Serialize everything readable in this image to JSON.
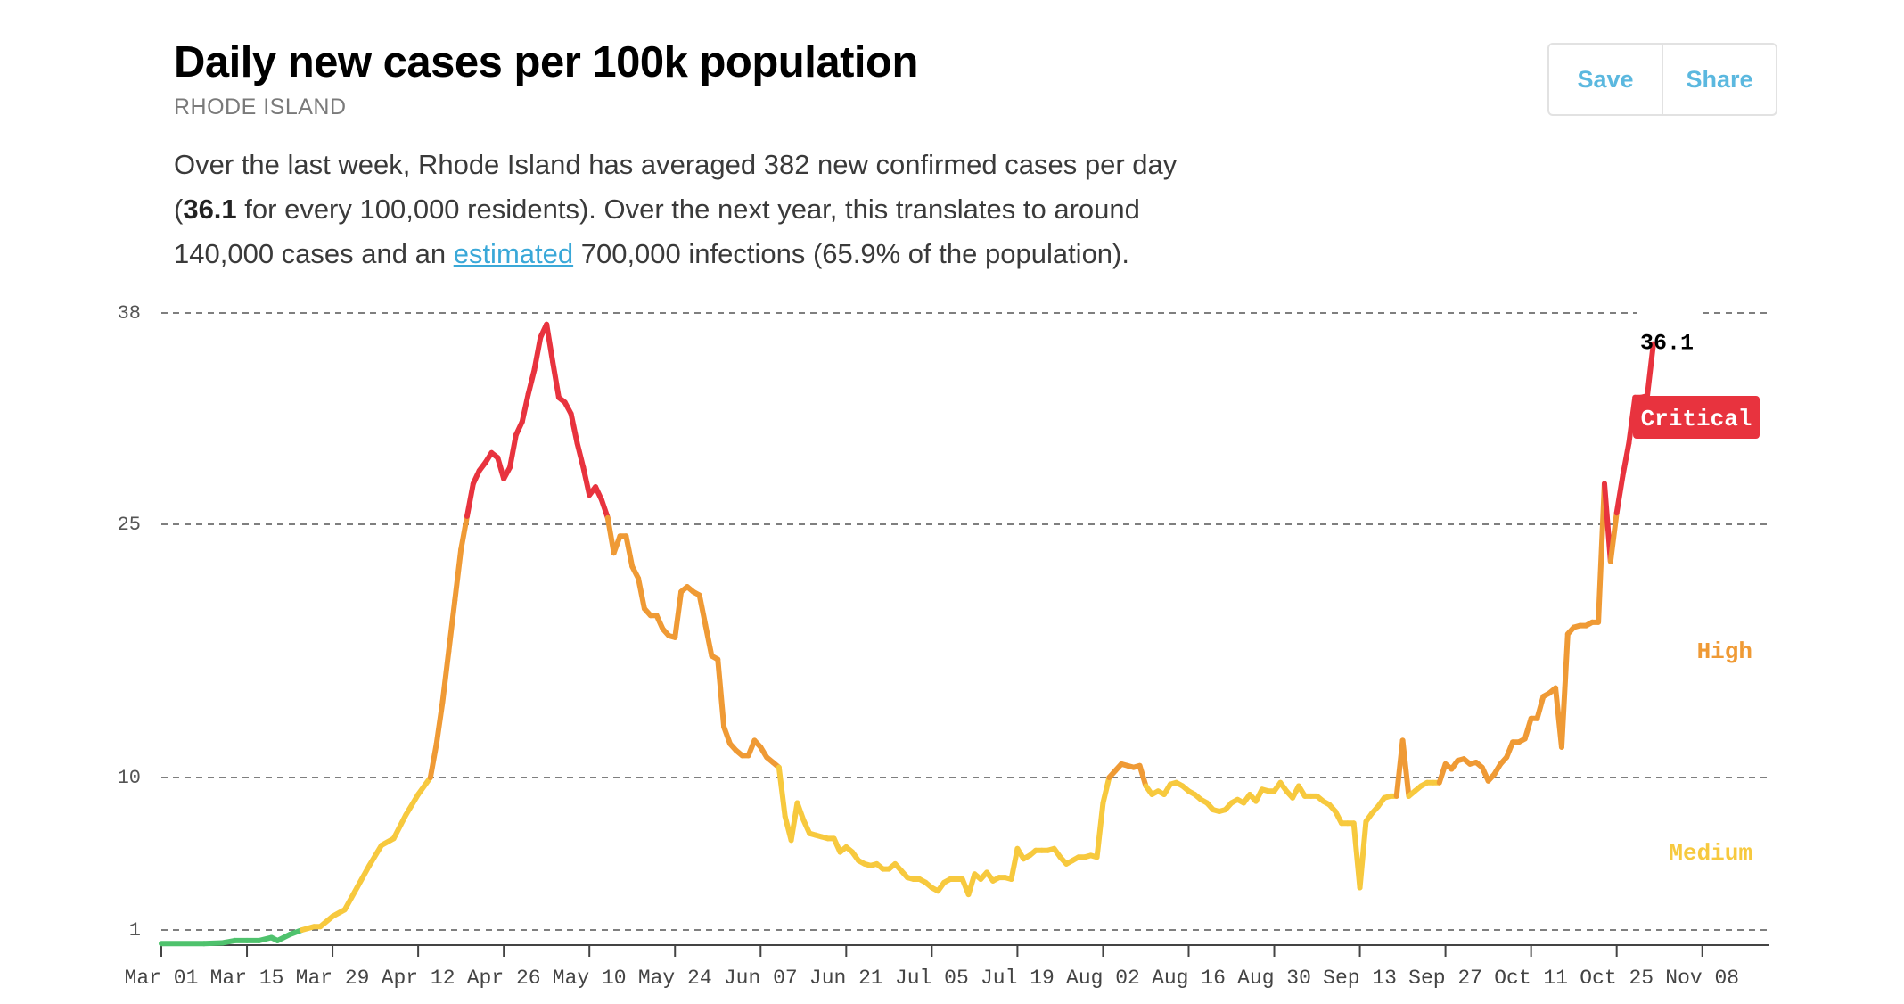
{
  "header": {
    "title": "Daily new cases per 100k population",
    "subtitle": "RHODE ISLAND",
    "save_label": "Save",
    "share_label": "Share"
  },
  "summary": {
    "part1": "Over the last week, Rhode Island has averaged 382 new confirmed cases per day (",
    "bold_value": "36.1",
    "part2": " for every 100,000 residents). Over the next year, this translates to around 140,000 cases and an ",
    "link_text": "estimated",
    "part3": " 700,000 infections (65.9% of the population)."
  },
  "chart_data": {
    "type": "line",
    "title": "Daily new cases per 100k population",
    "xlabel": "",
    "ylabel": "",
    "y_ticks": [
      1,
      10,
      25,
      38
    ],
    "y_tick_labels": [
      "1",
      "10",
      "25",
      "38"
    ],
    "ylim": [
      0,
      38
    ],
    "x_tick_labels": [
      "Mar 01",
      "Mar 15",
      "Mar 29",
      "Apr 12",
      "Apr 26",
      "May 10",
      "May 24",
      "Jun 07",
      "Jun 21",
      "Jul 05",
      "Jul 19",
      "Aug 02",
      "Aug 16",
      "Aug 30",
      "Sep 13",
      "Sep 27",
      "Oct 11",
      "Oct 25",
      "Nov 08"
    ],
    "grid": "horizontal dashed",
    "last_value_label": "36.1",
    "risk_levels": [
      {
        "name": "Critical",
        "color": "#e8333e"
      },
      {
        "name": "High",
        "color": "#ef9a35"
      },
      {
        "name": "Medium",
        "color": "#f7c93e"
      }
    ],
    "level_colors": {
      "low": "#4fc26d",
      "medium": "#f7c93e",
      "high": "#ef9a35",
      "critical": "#e8333e"
    },
    "series": [
      {
        "x_unit": "days since Mar 01",
        "points": [
          [
            0,
            0.1
          ],
          [
            7,
            0.1
          ],
          [
            10,
            0.15
          ],
          [
            12,
            0.3
          ],
          [
            14,
            0.3
          ],
          [
            16,
            0.3
          ],
          [
            18,
            0.5
          ],
          [
            19,
            0.3
          ],
          [
            21,
            0.7
          ],
          [
            23,
            1.0
          ],
          [
            25,
            1.2
          ],
          [
            26,
            1.2
          ],
          [
            28,
            1.8
          ],
          [
            30,
            2.2
          ],
          [
            32,
            3.5
          ],
          [
            34,
            4.8
          ],
          [
            36,
            6.0
          ],
          [
            38,
            6.4
          ],
          [
            40,
            7.8
          ],
          [
            42,
            9.0
          ],
          [
            44,
            10.0
          ],
          [
            45,
            12.0
          ],
          [
            46,
            14.5
          ],
          [
            47,
            17.5
          ],
          [
            48,
            20.5
          ],
          [
            49,
            23.5
          ],
          [
            50,
            25.5
          ],
          [
            51,
            27.5
          ],
          [
            52,
            28.3
          ],
          [
            53,
            28.8
          ],
          [
            54,
            29.4
          ],
          [
            55,
            29.1
          ],
          [
            56,
            27.8
          ],
          [
            57,
            28.5
          ],
          [
            58,
            30.5
          ],
          [
            59,
            31.3
          ],
          [
            60,
            33.0
          ],
          [
            61,
            34.5
          ],
          [
            62,
            36.5
          ],
          [
            63,
            37.3
          ],
          [
            64,
            35.0
          ],
          [
            65,
            32.8
          ],
          [
            66,
            32.5
          ],
          [
            67,
            31.8
          ],
          [
            68,
            30.0
          ],
          [
            69,
            28.5
          ],
          [
            70,
            26.8
          ],
          [
            71,
            27.3
          ],
          [
            72,
            26.5
          ],
          [
            73,
            25.4
          ],
          [
            74,
            23.3
          ],
          [
            75,
            24.3
          ],
          [
            76,
            24.3
          ],
          [
            77,
            22.5
          ],
          [
            78,
            21.8
          ],
          [
            79,
            20.0
          ],
          [
            80,
            19.6
          ],
          [
            81,
            19.6
          ],
          [
            82,
            18.8
          ],
          [
            83,
            18.4
          ],
          [
            84,
            18.3
          ],
          [
            85,
            21.0
          ],
          [
            86,
            21.3
          ],
          [
            87,
            21.0
          ],
          [
            88,
            20.8
          ],
          [
            89,
            19.0
          ],
          [
            90,
            17.2
          ],
          [
            91,
            17.0
          ],
          [
            92,
            13.0
          ],
          [
            93,
            12.0
          ],
          [
            94,
            11.6
          ],
          [
            95,
            11.3
          ],
          [
            96,
            11.3
          ],
          [
            97,
            12.2
          ],
          [
            98,
            11.8
          ],
          [
            99,
            11.2
          ],
          [
            100,
            10.9
          ],
          [
            101,
            10.6
          ],
          [
            102,
            7.7
          ],
          [
            103,
            6.3
          ],
          [
            104,
            8.5
          ],
          [
            105,
            7.5
          ],
          [
            106,
            6.7
          ],
          [
            107,
            6.6
          ],
          [
            108,
            6.5
          ],
          [
            109,
            6.4
          ],
          [
            110,
            6.4
          ],
          [
            111,
            5.6
          ],
          [
            112,
            5.9
          ],
          [
            113,
            5.6
          ],
          [
            114,
            5.1
          ],
          [
            115,
            4.9
          ],
          [
            116,
            4.8
          ],
          [
            117,
            4.9
          ],
          [
            118,
            4.6
          ],
          [
            119,
            4.6
          ],
          [
            120,
            4.9
          ],
          [
            121,
            4.5
          ],
          [
            122,
            4.1
          ],
          [
            123,
            4.0
          ],
          [
            124,
            4.0
          ],
          [
            125,
            3.8
          ],
          [
            126,
            3.5
          ],
          [
            127,
            3.3
          ],
          [
            128,
            3.8
          ],
          [
            129,
            4.0
          ],
          [
            130,
            4.0
          ],
          [
            131,
            4.0
          ],
          [
            132,
            3.1
          ],
          [
            133,
            4.3
          ],
          [
            134,
            4.0
          ],
          [
            135,
            4.4
          ],
          [
            136,
            3.9
          ],
          [
            137,
            4.1
          ],
          [
            138,
            4.1
          ],
          [
            139,
            4.0
          ],
          [
            140,
            5.8
          ],
          [
            141,
            5.2
          ],
          [
            142,
            5.4
          ],
          [
            143,
            5.7
          ],
          [
            144,
            5.7
          ],
          [
            145,
            5.7
          ],
          [
            146,
            5.8
          ],
          [
            147,
            5.3
          ],
          [
            148,
            4.9
          ],
          [
            149,
            5.1
          ],
          [
            150,
            5.3
          ],
          [
            151,
            5.3
          ],
          [
            152,
            5.4
          ],
          [
            153,
            5.3
          ],
          [
            154,
            8.5
          ],
          [
            155,
            10.0
          ],
          [
            156,
            10.4
          ],
          [
            157,
            10.8
          ],
          [
            158,
            10.7
          ],
          [
            159,
            10.6
          ],
          [
            160,
            10.7
          ],
          [
            161,
            9.5
          ],
          [
            162,
            9.0
          ],
          [
            163,
            9.2
          ],
          [
            164,
            9.0
          ],
          [
            165,
            9.6
          ],
          [
            166,
            9.7
          ],
          [
            167,
            9.5
          ],
          [
            168,
            9.2
          ],
          [
            169,
            9.0
          ],
          [
            170,
            8.7
          ],
          [
            171,
            8.5
          ],
          [
            172,
            8.1
          ],
          [
            173,
            8.0
          ],
          [
            174,
            8.1
          ],
          [
            175,
            8.5
          ],
          [
            176,
            8.7
          ],
          [
            177,
            8.5
          ],
          [
            178,
            9.0
          ],
          [
            179,
            8.6
          ],
          [
            180,
            9.3
          ],
          [
            181,
            9.2
          ],
          [
            182,
            9.2
          ],
          [
            183,
            9.7
          ],
          [
            184,
            9.2
          ],
          [
            185,
            8.8
          ],
          [
            186,
            9.5
          ],
          [
            187,
            8.9
          ],
          [
            188,
            8.9
          ],
          [
            189,
            8.9
          ],
          [
            190,
            8.6
          ],
          [
            191,
            8.4
          ],
          [
            192,
            8.0
          ],
          [
            193,
            7.3
          ],
          [
            194,
            7.3
          ],
          [
            195,
            7.3
          ],
          [
            196,
            3.5
          ],
          [
            197,
            7.4
          ],
          [
            198,
            7.9
          ],
          [
            199,
            8.3
          ],
          [
            200,
            8.8
          ],
          [
            201,
            8.9
          ],
          [
            202,
            8.9
          ],
          [
            203,
            12.2
          ],
          [
            204,
            8.9
          ],
          [
            205,
            9.2
          ],
          [
            206,
            9.5
          ],
          [
            207,
            9.7
          ],
          [
            208,
            9.7
          ],
          [
            209,
            9.7
          ],
          [
            210,
            10.8
          ],
          [
            211,
            10.5
          ],
          [
            212,
            11.0
          ],
          [
            213,
            11.1
          ],
          [
            214,
            10.8
          ],
          [
            215,
            10.9
          ],
          [
            216,
            10.6
          ],
          [
            217,
            9.8
          ],
          [
            218,
            10.2
          ],
          [
            219,
            10.8
          ],
          [
            220,
            11.2
          ],
          [
            221,
            12.1
          ],
          [
            222,
            12.1
          ],
          [
            223,
            12.3
          ],
          [
            224,
            13.5
          ],
          [
            225,
            13.5
          ],
          [
            226,
            14.8
          ],
          [
            227,
            15.0
          ],
          [
            228,
            15.3
          ],
          [
            229,
            11.8
          ],
          [
            230,
            18.5
          ],
          [
            231,
            18.9
          ],
          [
            232,
            19.0
          ],
          [
            233,
            19.0
          ],
          [
            234,
            19.2
          ],
          [
            235,
            19.2
          ],
          [
            236,
            27.5
          ],
          [
            237,
            22.8
          ],
          [
            238,
            25.7
          ],
          [
            239,
            28.0
          ],
          [
            240,
            30.0
          ],
          [
            241,
            32.8
          ],
          [
            242,
            32.8
          ],
          [
            243,
            32.9
          ],
          [
            244,
            36.1
          ]
        ]
      }
    ]
  }
}
